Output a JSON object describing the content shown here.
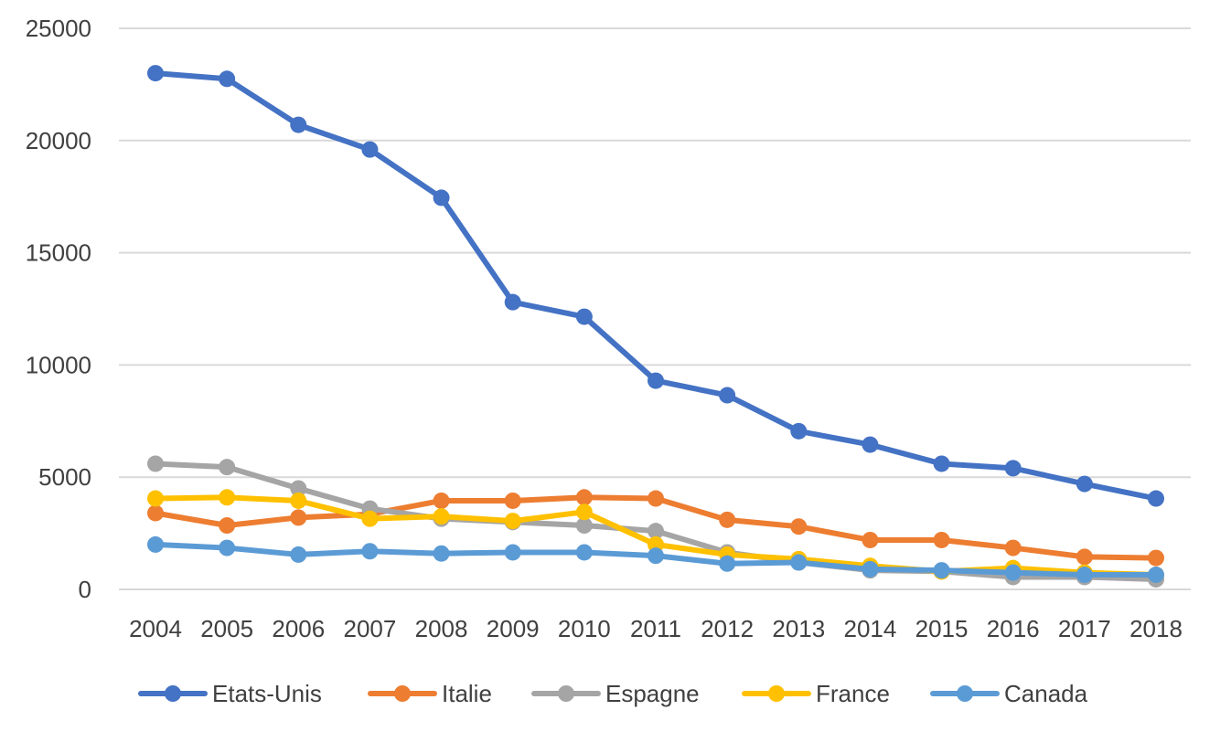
{
  "chart_data": {
    "type": "line",
    "title": "",
    "xlabel": "",
    "ylabel": "",
    "categories": [
      "2004",
      "2005",
      "2006",
      "2007",
      "2008",
      "2009",
      "2010",
      "2011",
      "2012",
      "2013",
      "2014",
      "2015",
      "2016",
      "2017",
      "2018"
    ],
    "ylim": [
      0,
      25000
    ],
    "yticks": [
      0,
      5000,
      10000,
      15000,
      20000,
      25000
    ],
    "grid": true,
    "legend_position": "bottom",
    "series": [
      {
        "name": "Etats-Unis",
        "color": "#4472C4",
        "values": [
          23000,
          22750,
          20700,
          19600,
          17450,
          12800,
          12150,
          9300,
          8650,
          7050,
          6450,
          5600,
          5400,
          4700,
          4050
        ]
      },
      {
        "name": "Italie",
        "color": "#ED7D31",
        "values": [
          3400,
          2850,
          3200,
          3350,
          3950,
          3950,
          4100,
          4050,
          3100,
          2800,
          2200,
          2200,
          1850,
          1450,
          1400
        ]
      },
      {
        "name": "Espagne",
        "color": "#A5A5A5",
        "values": [
          5600,
          5450,
          4500,
          3600,
          3150,
          3000,
          2850,
          2600,
          1650,
          1200,
          850,
          800,
          550,
          550,
          450
        ]
      },
      {
        "name": "France",
        "color": "#FFC000",
        "values": [
          4050,
          4100,
          3950,
          3150,
          3250,
          3050,
          3450,
          2000,
          1550,
          1350,
          1050,
          800,
          950,
          750,
          650
        ]
      },
      {
        "name": "Canada",
        "color": "#5B9BD5",
        "values": [
          2000,
          1850,
          1550,
          1700,
          1600,
          1650,
          1650,
          1500,
          1150,
          1200,
          900,
          850,
          750,
          650,
          650
        ]
      }
    ]
  }
}
